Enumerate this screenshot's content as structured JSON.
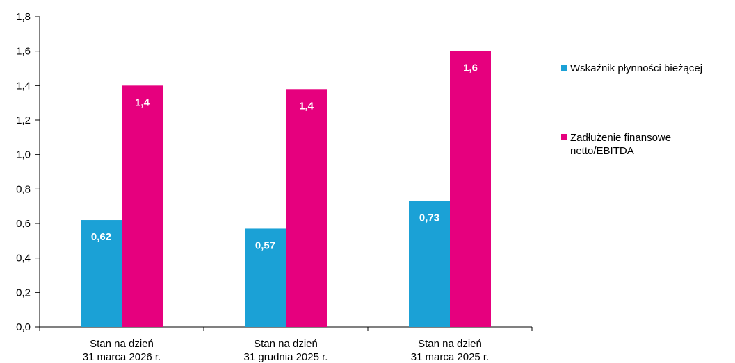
{
  "chart_data": {
    "type": "bar",
    "categories": [
      [
        "Stan na dzień",
        "31 marca 2026 r."
      ],
      [
        "Stan na dzień",
        "31 grudnia 2025 r."
      ],
      [
        "Stan na dzień",
        "31 marca 2025 r."
      ]
    ],
    "series": [
      {
        "name": "Wskaźnik płynności bieżącej",
        "color": "#1BA1D6",
        "values": [
          0.62,
          0.57,
          0.73
        ],
        "labels": [
          "0,62",
          "0,57",
          "0,73"
        ]
      },
      {
        "name_lines": [
          "Zadłużenie finansowe",
          "netto/EBITDA"
        ],
        "color": "#E6007E",
        "values": [
          1.4,
          1.38,
          1.6
        ],
        "labels": [
          "1,4",
          "1,4",
          "1,6"
        ]
      }
    ],
    "ylim": [
      0,
      1.8
    ],
    "y_ticks": [
      0.0,
      0.2,
      0.4,
      0.6,
      0.8,
      1.0,
      1.2,
      1.4,
      1.6,
      1.8
    ],
    "y_tick_labels": [
      "0,0",
      "0,2",
      "0,4",
      "0,6",
      "0,8",
      "1,0",
      "1,2",
      "1,4",
      "1,6",
      "1,8"
    ],
    "grid": false,
    "legend_position": "right",
    "title": "",
    "xlabel": "",
    "ylabel": ""
  }
}
